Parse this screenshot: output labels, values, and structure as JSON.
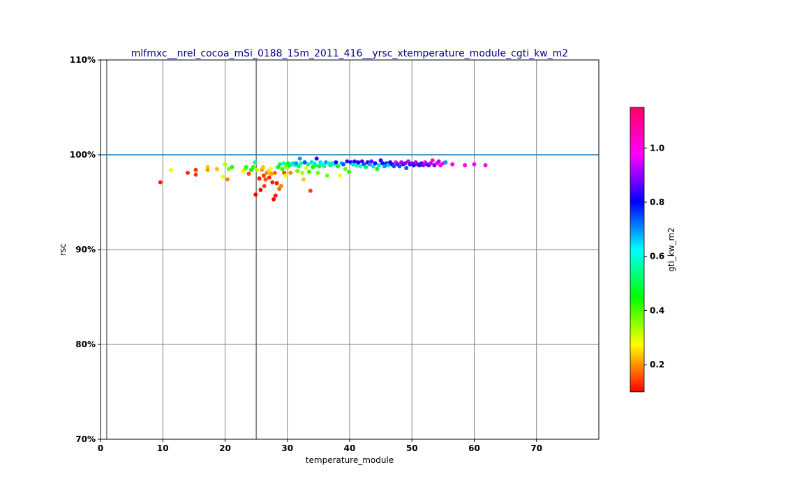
{
  "chart_data": {
    "type": "scatter",
    "title": "mlfmxc__nrel_cocoa_mSi_0188_15m_2011_416__yrsc_xtemperature_module_cgti_kw_m2",
    "xlabel": "temperature_module",
    "ylabel": "rsc",
    "xlim": [
      0,
      80
    ],
    "ylim": [
      0.7,
      1.1
    ],
    "x_ticks": [
      0,
      10,
      20,
      30,
      40,
      50,
      60,
      70
    ],
    "y_ticks": [
      0.7,
      0.8,
      0.9,
      1.0,
      1.1
    ],
    "y_tick_labels": [
      "70%",
      "80%",
      "90%",
      "100%",
      "110%"
    ],
    "grid": true,
    "x_vlines": [
      1,
      25
    ],
    "reference_line": {
      "y": 1.0,
      "color": "#1f77b4"
    },
    "colorbar": {
      "label": "gti_kw_m2",
      "range": [
        0.1,
        1.15
      ],
      "ticks": [
        0.2,
        0.4,
        0.6,
        0.8,
        1.0
      ],
      "tick_labels": [
        "0.2",
        "0.4",
        "0.6",
        "0.8",
        "1.0"
      ],
      "colormap": "hsv"
    },
    "points": [
      {
        "x": 9.6,
        "y": 0.971,
        "c": 0.12
      },
      {
        "x": 11.3,
        "y": 0.984,
        "c": 0.3
      },
      {
        "x": 14.0,
        "y": 0.981,
        "c": 0.13
      },
      {
        "x": 15.3,
        "y": 0.979,
        "c": 0.14
      },
      {
        "x": 15.3,
        "y": 0.984,
        "c": 0.14
      },
      {
        "x": 17.2,
        "y": 0.987,
        "c": 0.25
      },
      {
        "x": 17.2,
        "y": 0.984,
        "c": 0.22
      },
      {
        "x": 18.7,
        "y": 0.985,
        "c": 0.24
      },
      {
        "x": 19.6,
        "y": 0.977,
        "c": 0.3
      },
      {
        "x": 20.0,
        "y": 0.99,
        "c": 0.35
      },
      {
        "x": 20.4,
        "y": 0.974,
        "c": 0.2
      },
      {
        "x": 20.6,
        "y": 0.985,
        "c": 0.4
      },
      {
        "x": 21.1,
        "y": 0.987,
        "c": 0.45
      },
      {
        "x": 22.9,
        "y": 0.983,
        "c": 0.3
      },
      {
        "x": 23.2,
        "y": 0.985,
        "c": 0.38
      },
      {
        "x": 23.4,
        "y": 0.987,
        "c": 0.45
      },
      {
        "x": 23.8,
        "y": 0.98,
        "c": 0.15
      },
      {
        "x": 24.2,
        "y": 0.984,
        "c": 0.5
      },
      {
        "x": 24.5,
        "y": 0.987,
        "c": 0.45
      },
      {
        "x": 24.8,
        "y": 0.992,
        "c": 0.6
      },
      {
        "x": 24.9,
        "y": 0.958,
        "c": 0.1
      },
      {
        "x": 25.1,
        "y": 0.984,
        "c": 0.35
      },
      {
        "x": 25.5,
        "y": 0.975,
        "c": 0.12
      },
      {
        "x": 25.7,
        "y": 0.963,
        "c": 0.1
      },
      {
        "x": 25.9,
        "y": 0.984,
        "c": 0.22
      },
      {
        "x": 26.1,
        "y": 0.987,
        "c": 0.25
      },
      {
        "x": 26.2,
        "y": 0.978,
        "c": 0.14
      },
      {
        "x": 26.3,
        "y": 0.967,
        "c": 0.15
      },
      {
        "x": 26.5,
        "y": 0.974,
        "c": 0.16
      },
      {
        "x": 26.7,
        "y": 0.981,
        "c": 0.2
      },
      {
        "x": 27.0,
        "y": 0.983,
        "c": 0.25
      },
      {
        "x": 27.1,
        "y": 0.976,
        "c": 0.13
      },
      {
        "x": 27.3,
        "y": 0.985,
        "c": 0.3
      },
      {
        "x": 27.4,
        "y": 0.98,
        "c": 0.22
      },
      {
        "x": 27.6,
        "y": 0.971,
        "c": 0.12
      },
      {
        "x": 27.8,
        "y": 0.953,
        "c": 0.1
      },
      {
        "x": 28.0,
        "y": 0.981,
        "c": 0.18
      },
      {
        "x": 28.1,
        "y": 0.957,
        "c": 0.12
      },
      {
        "x": 28.3,
        "y": 0.97,
        "c": 0.12
      },
      {
        "x": 28.5,
        "y": 0.987,
        "c": 0.5
      },
      {
        "x": 28.7,
        "y": 0.964,
        "c": 0.18
      },
      {
        "x": 28.8,
        "y": 0.99,
        "c": 0.55
      },
      {
        "x": 29.0,
        "y": 0.967,
        "c": 0.2
      },
      {
        "x": 29.2,
        "y": 0.985,
        "c": 0.45
      },
      {
        "x": 29.4,
        "y": 0.991,
        "c": 0.62
      },
      {
        "x": 29.5,
        "y": 0.981,
        "c": 0.15
      },
      {
        "x": 29.7,
        "y": 0.978,
        "c": 0.28
      },
      {
        "x": 29.8,
        "y": 0.988,
        "c": 0.4
      },
      {
        "x": 30.0,
        "y": 0.986,
        "c": 0.35
      },
      {
        "x": 30.1,
        "y": 0.991,
        "c": 0.5
      },
      {
        "x": 30.3,
        "y": 0.989,
        "c": 0.55
      },
      {
        "x": 30.5,
        "y": 0.981,
        "c": 0.2
      },
      {
        "x": 30.7,
        "y": 0.99,
        "c": 0.58
      },
      {
        "x": 30.9,
        "y": 0.991,
        "c": 0.7
      },
      {
        "x": 31.2,
        "y": 0.989,
        "c": 0.65
      },
      {
        "x": 31.4,
        "y": 0.991,
        "c": 0.75
      },
      {
        "x": 31.6,
        "y": 0.983,
        "c": 0.4
      },
      {
        "x": 31.8,
        "y": 0.988,
        "c": 0.55
      },
      {
        "x": 32.0,
        "y": 0.996,
        "c": 0.75
      },
      {
        "x": 32.2,
        "y": 0.991,
        "c": 0.62
      },
      {
        "x": 32.4,
        "y": 0.981,
        "c": 0.35
      },
      {
        "x": 32.6,
        "y": 0.974,
        "c": 0.25
      },
      {
        "x": 32.8,
        "y": 0.992,
        "c": 0.8
      },
      {
        "x": 33.0,
        "y": 0.986,
        "c": 0.3
      },
      {
        "x": 33.3,
        "y": 0.99,
        "c": 0.6
      },
      {
        "x": 33.5,
        "y": 0.982,
        "c": 0.45
      },
      {
        "x": 33.7,
        "y": 0.962,
        "c": 0.15
      },
      {
        "x": 33.9,
        "y": 0.992,
        "c": 0.7
      },
      {
        "x": 34.1,
        "y": 0.987,
        "c": 0.5
      },
      {
        "x": 34.3,
        "y": 0.991,
        "c": 0.65
      },
      {
        "x": 34.5,
        "y": 0.989,
        "c": 0.55
      },
      {
        "x": 34.7,
        "y": 0.996,
        "c": 0.9
      },
      {
        "x": 34.9,
        "y": 0.981,
        "c": 0.4
      },
      {
        "x": 35.1,
        "y": 0.988,
        "c": 0.5
      },
      {
        "x": 35.3,
        "y": 0.992,
        "c": 0.7
      },
      {
        "x": 35.6,
        "y": 0.99,
        "c": 0.65
      },
      {
        "x": 35.9,
        "y": 0.988,
        "c": 0.6
      },
      {
        "x": 36.2,
        "y": 0.992,
        "c": 0.75
      },
      {
        "x": 36.4,
        "y": 0.978,
        "c": 0.4
      },
      {
        "x": 36.6,
        "y": 0.991,
        "c": 0.65
      },
      {
        "x": 36.9,
        "y": 0.989,
        "c": 0.55
      },
      {
        "x": 37.2,
        "y": 0.991,
        "c": 0.7
      },
      {
        "x": 37.5,
        "y": 0.99,
        "c": 0.65
      },
      {
        "x": 37.8,
        "y": 0.992,
        "c": 0.85
      },
      {
        "x": 38.1,
        "y": 0.988,
        "c": 0.5
      },
      {
        "x": 38.4,
        "y": 0.978,
        "c": 0.3
      },
      {
        "x": 38.7,
        "y": 0.991,
        "c": 0.72
      },
      {
        "x": 39.0,
        "y": 0.99,
        "c": 0.8
      },
      {
        "x": 39.3,
        "y": 0.985,
        "c": 0.4
      },
      {
        "x": 39.6,
        "y": 0.993,
        "c": 0.9
      },
      {
        "x": 39.9,
        "y": 0.982,
        "c": 0.45
      },
      {
        "x": 40.2,
        "y": 0.992,
        "c": 0.85
      },
      {
        "x": 40.5,
        "y": 0.99,
        "c": 0.7
      },
      {
        "x": 40.8,
        "y": 0.993,
        "c": 0.9
      },
      {
        "x": 41.1,
        "y": 0.989,
        "c": 0.6
      },
      {
        "x": 41.4,
        "y": 0.992,
        "c": 0.9
      },
      {
        "x": 41.7,
        "y": 0.988,
        "c": 0.65
      },
      {
        "x": 42.0,
        "y": 0.993,
        "c": 0.92
      },
      {
        "x": 42.3,
        "y": 0.99,
        "c": 0.8
      },
      {
        "x": 42.6,
        "y": 0.987,
        "c": 0.55
      },
      {
        "x": 42.9,
        "y": 0.992,
        "c": 0.88
      },
      {
        "x": 43.2,
        "y": 0.99,
        "c": 0.75
      },
      {
        "x": 43.5,
        "y": 0.993,
        "c": 0.95
      },
      {
        "x": 43.8,
        "y": 0.988,
        "c": 0.7
      },
      {
        "x": 44.1,
        "y": 0.991,
        "c": 0.85
      },
      {
        "x": 44.4,
        "y": 0.985,
        "c": 0.5
      },
      {
        "x": 44.7,
        "y": 0.989,
        "c": 0.7
      },
      {
        "x": 45.0,
        "y": 0.994,
        "c": 0.9
      },
      {
        "x": 45.3,
        "y": 0.991,
        "c": 0.85
      },
      {
        "x": 45.6,
        "y": 0.988,
        "c": 0.75
      },
      {
        "x": 45.9,
        "y": 0.991,
        "c": 0.82
      },
      {
        "x": 46.2,
        "y": 0.989,
        "c": 0.7
      },
      {
        "x": 46.5,
        "y": 0.992,
        "c": 0.9
      },
      {
        "x": 46.8,
        "y": 0.99,
        "c": 0.85
      },
      {
        "x": 47.1,
        "y": 0.988,
        "c": 0.8
      },
      {
        "x": 47.4,
        "y": 0.992,
        "c": 1.05
      },
      {
        "x": 47.7,
        "y": 0.99,
        "c": 0.95
      },
      {
        "x": 48.0,
        "y": 0.988,
        "c": 0.8
      },
      {
        "x": 48.3,
        "y": 0.992,
        "c": 1.0
      },
      {
        "x": 48.6,
        "y": 0.99,
        "c": 0.92
      },
      {
        "x": 48.9,
        "y": 0.991,
        "c": 0.95
      },
      {
        "x": 49.1,
        "y": 0.986,
        "c": 0.8
      },
      {
        "x": 49.4,
        "y": 0.993,
        "c": 1.0
      },
      {
        "x": 49.7,
        "y": 0.99,
        "c": 0.9
      },
      {
        "x": 50.0,
        "y": 0.991,
        "c": 0.95
      },
      {
        "x": 50.3,
        "y": 0.989,
        "c": 0.85
      },
      {
        "x": 50.6,
        "y": 0.992,
        "c": 1.0
      },
      {
        "x": 50.9,
        "y": 0.99,
        "c": 0.95
      },
      {
        "x": 51.2,
        "y": 0.989,
        "c": 0.9
      },
      {
        "x": 51.5,
        "y": 0.991,
        "c": 0.92
      },
      {
        "x": 51.8,
        "y": 0.989,
        "c": 0.95
      },
      {
        "x": 52.1,
        "y": 0.992,
        "c": 1.05
      },
      {
        "x": 52.4,
        "y": 0.99,
        "c": 0.95
      },
      {
        "x": 52.7,
        "y": 0.989,
        "c": 0.92
      },
      {
        "x": 53.0,
        "y": 0.991,
        "c": 1.0
      },
      {
        "x": 53.3,
        "y": 0.994,
        "c": 1.1
      },
      {
        "x": 53.6,
        "y": 0.989,
        "c": 0.95
      },
      {
        "x": 54.0,
        "y": 0.991,
        "c": 1.05
      },
      {
        "x": 54.3,
        "y": 0.993,
        "c": 1.0
      },
      {
        "x": 54.6,
        "y": 0.989,
        "c": 1.1
      },
      {
        "x": 55.0,
        "y": 0.991,
        "c": 1.05
      },
      {
        "x": 55.4,
        "y": 0.992,
        "c": 0.75
      },
      {
        "x": 56.5,
        "y": 0.99,
        "c": 1.05
      },
      {
        "x": 58.5,
        "y": 0.989,
        "c": 1.05
      },
      {
        "x": 60.0,
        "y": 0.99,
        "c": 1.05
      },
      {
        "x": 61.8,
        "y": 0.989,
        "c": 1.05
      }
    ]
  }
}
